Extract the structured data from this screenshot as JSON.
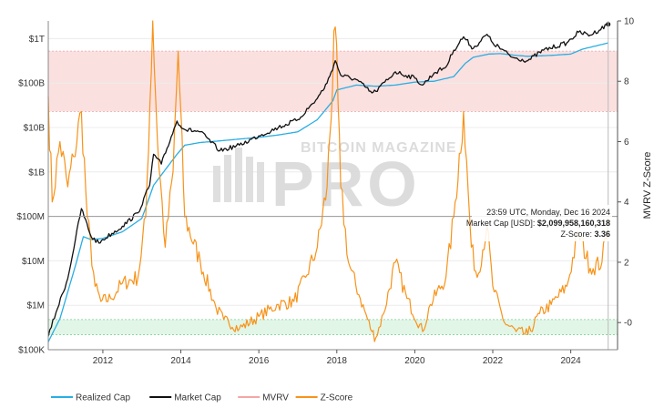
{
  "chart_data": {
    "type": "line",
    "title": "",
    "watermark": {
      "line1": "BITCOIN MAGAZINE",
      "line2": "PRO"
    },
    "x_ticks": [
      "2012",
      "2014",
      "2016",
      "2018",
      "2020",
      "2022",
      "2024"
    ],
    "xlim": [
      2010.6,
      2025.2
    ],
    "y_left": {
      "scale": "log",
      "tick_labels": [
        "$100K",
        "$1M",
        "$10M",
        "$100M",
        "$1B",
        "$10B",
        "$100B",
        "$1T"
      ],
      "tick_values": [
        100000,
        1000000,
        10000000,
        100000000,
        1000000000,
        10000000000,
        100000000000,
        1000000000000
      ],
      "ylim": [
        100000,
        2500000000000
      ]
    },
    "y_right": {
      "label": "MVRV Z-Score",
      "tick_labels": [
        "-0",
        "2",
        "4",
        "6",
        "8",
        "10"
      ],
      "tick_values": [
        0,
        2,
        4,
        6,
        8,
        10
      ],
      "ylim": [
        -0.9,
        10
      ]
    },
    "bands": [
      {
        "name": "overvalued-zone",
        "axis": "right",
        "from": 7,
        "to": 9,
        "color": "#f9d6d6"
      },
      {
        "name": "undervalued-zone",
        "axis": "right",
        "from": -0.4,
        "to": 0.1,
        "color": "#d8f3df"
      }
    ],
    "series": [
      {
        "name": "Realized Cap",
        "axis": "left",
        "color": "#29aee3",
        "x": [
          2010.6,
          2010.9,
          2011.3,
          2011.5,
          2011.7,
          2012.0,
          2012.5,
          2013.0,
          2013.3,
          2013.9,
          2014.1,
          2014.5,
          2015.0,
          2015.5,
          2016.0,
          2016.5,
          2017.0,
          2017.5,
          2017.9,
          2018.0,
          2018.5,
          2019.0,
          2019.5,
          2020.0,
          2020.5,
          2021.0,
          2021.3,
          2021.5,
          2021.9,
          2022.2,
          2022.6,
          2022.9,
          2023.5,
          2024.0,
          2024.3,
          2024.96
        ],
        "values": [
          150000,
          500000,
          8000000,
          35000000,
          30000000,
          32000000,
          45000000,
          90000000,
          500000000,
          2500000000,
          4000000000,
          4600000000,
          5000000000,
          5500000000,
          6000000000,
          6800000000,
          8000000000,
          15000000000,
          40000000000,
          70000000000,
          90000000000,
          85000000000,
          90000000000,
          105000000000,
          110000000000,
          140000000000,
          280000000000,
          380000000000,
          450000000000,
          460000000000,
          420000000000,
          400000000000,
          420000000000,
          450000000000,
          580000000000,
          800000000000
        ]
      },
      {
        "name": "Market Cap",
        "axis": "left",
        "color": "#111111",
        "x": [
          2010.6,
          2010.8,
          2011.1,
          2011.45,
          2011.7,
          2011.9,
          2012.0,
          2012.5,
          2012.9,
          2013.2,
          2013.3,
          2013.5,
          2013.9,
          2014.1,
          2014.5,
          2015.0,
          2015.5,
          2016.0,
          2016.5,
          2017.0,
          2017.5,
          2017.75,
          2017.96,
          2018.1,
          2018.5,
          2018.9,
          2019.0,
          2019.5,
          2020.0,
          2020.2,
          2020.5,
          2020.8,
          2021.0,
          2021.25,
          2021.5,
          2021.85,
          2022.0,
          2022.5,
          2022.9,
          2023.3,
          2023.9,
          2024.2,
          2024.5,
          2024.96
        ],
        "values": [
          200000,
          700000,
          4000000,
          150000000,
          35000000,
          25000000,
          30000000,
          60000000,
          120000000,
          500000000,
          2500000000,
          1500000000,
          14000000000,
          9000000000,
          8000000000,
          3000000000,
          4000000000,
          6500000000,
          10000000000,
          15000000000,
          45000000000,
          100000000000,
          320000000000,
          150000000000,
          120000000000,
          60000000000,
          65000000000,
          180000000000,
          130000000000,
          90000000000,
          170000000000,
          230000000000,
          550000000000,
          1100000000000,
          600000000000,
          1250000000000,
          800000000000,
          380000000000,
          320000000000,
          550000000000,
          800000000000,
          1400000000000,
          1200000000000,
          2099958160318
        ]
      },
      {
        "name": "MVRV",
        "axis": "left",
        "color": "#f4a6a6",
        "values": []
      },
      {
        "name": "Z-Score",
        "axis": "right",
        "color": "#f7931a",
        "x": [
          2010.6,
          2010.7,
          2010.9,
          2011.1,
          2011.25,
          2011.45,
          2011.6,
          2011.8,
          2011.95,
          2012.2,
          2012.5,
          2012.9,
          2013.1,
          2013.28,
          2013.4,
          2013.6,
          2013.8,
          2013.93,
          2014.1,
          2014.5,
          2014.9,
          2015.1,
          2015.5,
          2016.0,
          2016.5,
          2016.9,
          2017.2,
          2017.5,
          2017.75,
          2017.96,
          2018.1,
          2018.3,
          2018.6,
          2018.9,
          2019.0,
          2019.2,
          2019.5,
          2019.8,
          2020.2,
          2020.4,
          2020.8,
          2021.0,
          2021.25,
          2021.45,
          2021.6,
          2021.85,
          2022.0,
          2022.3,
          2022.6,
          2022.9,
          2023.2,
          2023.5,
          2023.9,
          2024.2,
          2024.5,
          2024.8,
          2024.96
        ],
        "values": [
          7.5,
          4.0,
          6.0,
          4.5,
          5.5,
          7.0,
          3.5,
          1.2,
          0.7,
          0.8,
          1.3,
          1.5,
          3.5,
          10.0,
          6.0,
          2.5,
          5.0,
          9.0,
          3.5,
          2.0,
          0.5,
          0.1,
          -0.2,
          0.2,
          0.6,
          0.7,
          1.5,
          2.5,
          4.5,
          9.8,
          4.5,
          2.0,
          0.8,
          -0.3,
          -0.5,
          0.3,
          2.0,
          0.8,
          -0.3,
          0.6,
          1.5,
          3.5,
          7.0,
          2.5,
          1.5,
          3.2,
          1.2,
          0.0,
          -0.3,
          -0.4,
          0.3,
          0.6,
          1.2,
          3.0,
          1.8,
          2.0,
          3.36
        ]
      }
    ],
    "legend": {
      "position": "bottom-left",
      "entries": [
        {
          "label": "Realized Cap",
          "color": "#29aee3"
        },
        {
          "label": "Market Cap",
          "color": "#111111"
        },
        {
          "label": "MVRV",
          "color": "#f4a6a6"
        },
        {
          "label": "Z-Score",
          "color": "#f7931a"
        }
      ]
    },
    "crosshair_x": 2024.96,
    "tooltip": {
      "date": "23:59 UTC, Monday, Dec 16 2024",
      "market_cap_label": "Market Cap [USD]:",
      "market_cap_value": "$2,099,958,160,318",
      "zscore_label": "Z-Score:",
      "zscore_value": "3.36"
    }
  }
}
